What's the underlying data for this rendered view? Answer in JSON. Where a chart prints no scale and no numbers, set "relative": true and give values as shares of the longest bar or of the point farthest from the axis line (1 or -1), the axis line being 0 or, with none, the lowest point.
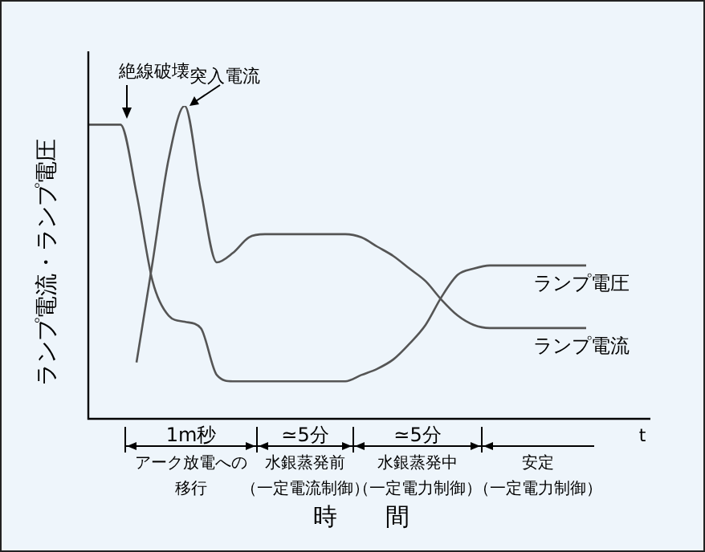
{
  "chart_data": {
    "type": "line",
    "relative": true,
    "ylabel": "ランプ電流・ランプ電圧",
    "xlabel": "時　　間",
    "legend": false,
    "grid": false,
    "marker": "none",
    "tick_labels": false,
    "categories": [
      null,
      null,
      null,
      null,
      null,
      null,
      null,
      null,
      null,
      null,
      null,
      null,
      null,
      null,
      null,
      null,
      null,
      null,
      null,
      null,
      null,
      null,
      null,
      null,
      null,
      null,
      null,
      null,
      null,
      null,
      null,
      null,
      null,
      null,
      null,
      null
    ],
    "series": [
      {
        "name": "ランプ電圧",
        "color": "#555555",
        "values": [
          0.94,
          0.94,
          0.94,
          0.72,
          0.44,
          0.33,
          0.31,
          0.29,
          0.14,
          0.12,
          0.12,
          0.12,
          0.12,
          0.12,
          0.12,
          0.12,
          0.12,
          0.14,
          0.16,
          0.19,
          0.24,
          0.3,
          0.39,
          0.46,
          0.48,
          0.49,
          0.49,
          0.49,
          0.49,
          0.49,
          0.49,
          0.49,
          null,
          null,
          null,
          null
        ]
      },
      {
        "name": "ランプ電流",
        "color": "#555555",
        "values": [
          null,
          null,
          null,
          0.18,
          0.5,
          0.83,
          1,
          0.73,
          0.5,
          0.53,
          0.58,
          0.59,
          0.59,
          0.59,
          0.59,
          0.59,
          0.59,
          0.58,
          0.55,
          0.52,
          0.48,
          0.44,
          0.38,
          0.33,
          0.3,
          0.29,
          0.29,
          0.29,
          0.29,
          0.29,
          0.29,
          0.29,
          null,
          null,
          null,
          null
        ]
      }
    ],
    "annotations": [
      "絶線破壊",
      "突入電流",
      "t",
      "1m秒",
      "アーク放電への",
      "移行",
      "≃5分",
      "水銀蒸発前",
      "（一定電流制御）",
      "≃5分",
      "水銀蒸発中",
      "（一定電力制御）",
      "安定",
      "（一定電力制御）"
    ]
  }
}
